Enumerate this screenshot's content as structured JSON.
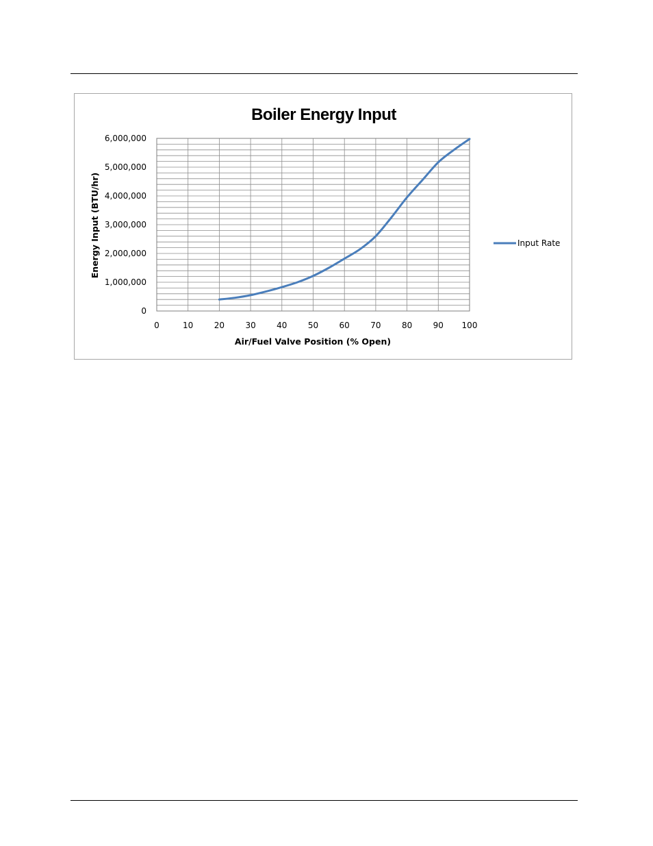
{
  "chart_data": {
    "type": "line",
    "title": "Boiler Energy Input",
    "xlabel": "Air/Fuel Valve Position (% Open)",
    "ylabel": "Energy Input (BTU/hr)",
    "xlim": [
      0,
      100
    ],
    "ylim": [
      0,
      6000000
    ],
    "x_ticks": [
      "0",
      "10",
      "20",
      "30",
      "40",
      "50",
      "60",
      "70",
      "80",
      "90",
      "100"
    ],
    "y_ticks": [
      "0",
      "1,000,000",
      "2,000,000",
      "3,000,000",
      "4,000,000",
      "5,000,000",
      "6,000,000"
    ],
    "grid": true,
    "legend_position": "right",
    "series": [
      {
        "name": "Input Rate",
        "color": "#4a7ebb",
        "x": [
          20,
          25,
          30,
          35,
          40,
          45,
          50,
          55,
          60,
          65,
          70,
          75,
          80,
          85,
          90,
          95,
          100
        ],
        "y": [
          400000,
          460000,
          550000,
          680000,
          830000,
          1000000,
          1220000,
          1500000,
          1820000,
          2150000,
          2600000,
          3250000,
          3950000,
          4560000,
          5170000,
          5600000,
          5980000
        ]
      }
    ]
  }
}
